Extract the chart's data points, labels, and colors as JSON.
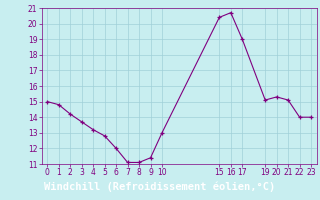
{
  "x": [
    0,
    1,
    2,
    3,
    4,
    5,
    6,
    7,
    8,
    9,
    10,
    15,
    16,
    17,
    19,
    20,
    21,
    22,
    23
  ],
  "y": [
    15.0,
    14.8,
    14.2,
    13.7,
    13.2,
    12.8,
    12.0,
    11.1,
    11.1,
    11.4,
    13.0,
    20.4,
    20.7,
    19.0,
    15.1,
    15.3,
    15.1,
    14.0,
    14.0
  ],
  "xlim": [
    -0.5,
    23.5
  ],
  "ylim": [
    11,
    21
  ],
  "yticks": [
    11,
    12,
    13,
    14,
    15,
    16,
    17,
    18,
    19,
    20,
    21
  ],
  "xticks": [
    0,
    1,
    2,
    3,
    4,
    5,
    6,
    7,
    8,
    9,
    10,
    15,
    16,
    17,
    19,
    20,
    21,
    22,
    23
  ],
  "xlabel": "Windchill (Refroidissement éolien,°C)",
  "line_color": "#800080",
  "marker": "+",
  "bg_color": "#c8eef0",
  "grid_color": "#a0d0d8",
  "xlabel_bg": "#800080",
  "xlabel_color": "#ffffff",
  "xlabel_fontsize": 7.5,
  "tick_fontsize": 5.5
}
